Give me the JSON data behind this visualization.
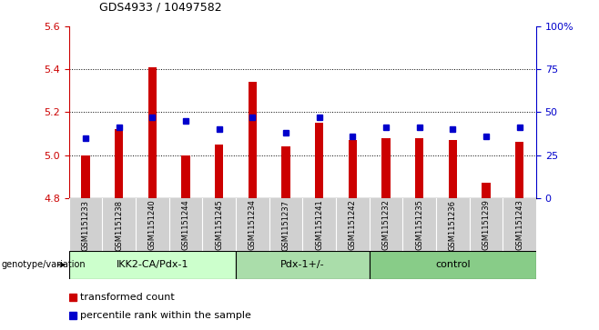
{
  "title": "GDS4933 / 10497582",
  "samples": [
    "GSM1151233",
    "GSM1151238",
    "GSM1151240",
    "GSM1151244",
    "GSM1151245",
    "GSM1151234",
    "GSM1151237",
    "GSM1151241",
    "GSM1151242",
    "GSM1151232",
    "GSM1151235",
    "GSM1151236",
    "GSM1151239",
    "GSM1151243"
  ],
  "bar_values": [
    5.0,
    5.12,
    5.41,
    5.0,
    5.05,
    5.34,
    5.04,
    5.15,
    5.07,
    5.08,
    5.08,
    5.07,
    4.87,
    5.06
  ],
  "bar_bottom": 4.8,
  "percentile_values": [
    35,
    41,
    47,
    45,
    40,
    47,
    38,
    47,
    36,
    41,
    41,
    40,
    36,
    41
  ],
  "ylim_left": [
    4.8,
    5.6
  ],
  "ylim_right": [
    0,
    100
  ],
  "yticks_left": [
    4.8,
    5.0,
    5.2,
    5.4,
    5.6
  ],
  "yticks_right": [
    0,
    25,
    50,
    75,
    100
  ],
  "bar_color": "#cc0000",
  "dot_color": "#0000cc",
  "bar_width": 0.25,
  "groups": [
    {
      "label": "IKK2-CA/Pdx-1",
      "start": 0,
      "end": 5
    },
    {
      "label": "Pdx-1+/-",
      "start": 5,
      "end": 9
    },
    {
      "label": "control",
      "start": 9,
      "end": 14
    }
  ],
  "group_colors": [
    "#ccffcc",
    "#aaddaa",
    "#88cc88"
  ],
  "genotype_label": "genotype/variation",
  "legend_items": [
    {
      "color": "#cc0000",
      "label": "transformed count"
    },
    {
      "color": "#0000cc",
      "label": "percentile rank within the sample"
    }
  ],
  "tick_label_color_left": "#cc0000",
  "tick_label_color_right": "#0000cc",
  "sample_area_color": "#d0d0d0",
  "grid_dotted_at": [
    5.0,
    5.2,
    5.4
  ]
}
